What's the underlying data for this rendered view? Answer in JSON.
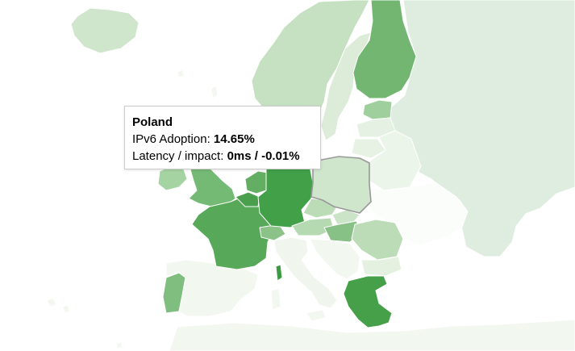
{
  "map": {
    "region": "Europe",
    "metric": "IPv6 Adoption",
    "selected_country": "Poland",
    "countries": [
      {
        "name": "Poland",
        "ipv6_adoption": "14.65%",
        "latency": "0ms",
        "impact": "-0.01%",
        "color": "#d0e6cc"
      },
      {
        "name": "Germany",
        "color": "#42a048"
      },
      {
        "name": "France",
        "color": "#58a85a"
      },
      {
        "name": "Greece",
        "color": "#45a049"
      },
      {
        "name": "Finland",
        "color": "#72b672"
      },
      {
        "name": "Belgium",
        "color": "#4a9f4e"
      },
      {
        "name": "Netherlands",
        "color": "#64ae64"
      },
      {
        "name": "United Kingdom",
        "color": "#74b974"
      },
      {
        "name": "Ireland",
        "color": "#a6d3a2"
      },
      {
        "name": "Portugal",
        "color": "#80be7f"
      },
      {
        "name": "Spain",
        "color": "#f2f7f0"
      },
      {
        "name": "Italy",
        "color": "#f0f6ee"
      },
      {
        "name": "Sardinia",
        "color": "#f2f7f0"
      },
      {
        "name": "Corsica",
        "color": "#3c9a42"
      },
      {
        "name": "Switzerland",
        "color": "#8bc288"
      },
      {
        "name": "Austria",
        "color": "#b5d9b1"
      },
      {
        "name": "Czech Republic",
        "color": "#bcdcb8"
      },
      {
        "name": "Slovakia",
        "color": "#cbe4c7"
      },
      {
        "name": "Hungary",
        "color": "#88c185"
      },
      {
        "name": "Romania",
        "color": "#bcdcb8"
      },
      {
        "name": "Bulgaria",
        "color": "#e4f1e1"
      },
      {
        "name": "Balkans",
        "color": "#f2f7f0"
      },
      {
        "name": "Norway",
        "color": "#c6e1c2"
      },
      {
        "name": "Sweden",
        "color": "#dcecd8"
      },
      {
        "name": "Estonia",
        "color": "#9fcf9c"
      },
      {
        "name": "Latvia",
        "color": "#e5f1e2"
      },
      {
        "name": "Lithuania",
        "color": "#e7f2e4"
      },
      {
        "name": "Belarus",
        "color": "#ecf5ea"
      },
      {
        "name": "Ukraine",
        "color": "#fbfdfb"
      },
      {
        "name": "Russia",
        "color": "#deede0"
      },
      {
        "name": "Iceland",
        "color": "#d0e6cc"
      },
      {
        "name": "Denmark",
        "color": "#e0efdd"
      },
      {
        "name": "Turkey",
        "color": "#ffffff"
      }
    ]
  },
  "tooltip": {
    "title": "Poland",
    "adoption_label": "IPv6 Adoption: ",
    "adoption_value": "14.65%",
    "latency_label": "Latency / impact: ",
    "latency_value": "0ms / -0.01%"
  }
}
